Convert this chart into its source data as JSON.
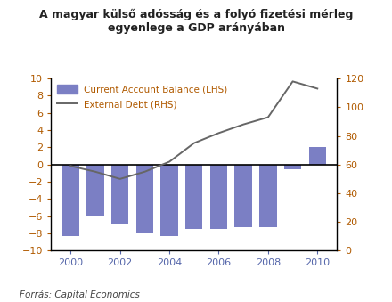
{
  "title": "A magyar külső adósság és a folyó fizetési mérleg\negyenlege a GDP arányában",
  "title_color": "#222222",
  "footnote": "Forrás: Capital Economics",
  "years": [
    2000,
    2001,
    2002,
    2003,
    2004,
    2005,
    2006,
    2007,
    2008,
    2009,
    2010
  ],
  "current_account": [
    -8.3,
    -6.0,
    -7.0,
    -8.0,
    -8.3,
    -7.5,
    -7.5,
    -7.3,
    -7.3,
    -0.5,
    2.0
  ],
  "external_debt": [
    59,
    55,
    50,
    55,
    62,
    75,
    82,
    88,
    93,
    118,
    113
  ],
  "bar_color": "#7b7fc4",
  "line_color": "#666666",
  "ylim_left": [
    -10,
    10
  ],
  "ylim_right": [
    0,
    120
  ],
  "yticks_left": [
    -10,
    -8,
    -6,
    -4,
    -2,
    0,
    2,
    4,
    6,
    8,
    10
  ],
  "yticks_right": [
    0,
    20,
    40,
    60,
    80,
    100,
    120
  ],
  "xticks": [
    2000,
    2002,
    2004,
    2006,
    2008,
    2010
  ],
  "legend_bar_label": "Current Account Balance (LHS)",
  "legend_line_label": "External Debt (RHS)",
  "legend_label_color": "#b05a00",
  "left_tick_color": "#b05a00",
  "right_tick_color": "#b05a00",
  "x_tick_color": "#5566aa",
  "background_color": "#ffffff",
  "bar_width": 0.7,
  "spine_color": "#000000"
}
